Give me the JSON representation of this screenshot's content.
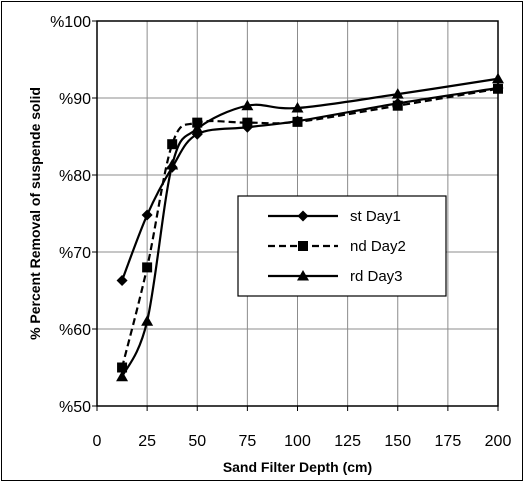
{
  "chart_data": {
    "type": "line",
    "xlabel": "Sand Filter Depth (cm)",
    "ylabel": "% Percent Removal of suspende solid",
    "xlim": [
      0,
      200
    ],
    "ylim": [
      50,
      100
    ],
    "x_ticks": [
      "0",
      "25",
      "50",
      "75",
      "100",
      "125",
      "150",
      "175",
      "200"
    ],
    "y_ticks": [
      "%50",
      "%60",
      "%70",
      "%80",
      "%90",
      "%100"
    ],
    "grid": true,
    "legend_position": "center-right",
    "series": [
      {
        "name": "st Day1",
        "marker": "diamond",
        "dash": "solid",
        "x": [
          12.5,
          25,
          37.5,
          50,
          75,
          100,
          150,
          200
        ],
        "values": [
          66.3,
          74.8,
          81.0,
          85.3,
          86.2,
          87.0,
          89.3,
          91.3
        ]
      },
      {
        "name": "nd Day2",
        "marker": "square",
        "dash": "dashed",
        "x": [
          12.5,
          25,
          37.5,
          50,
          75,
          100,
          150,
          200
        ],
        "values": [
          55.0,
          68.0,
          84.0,
          86.8,
          86.8,
          86.9,
          89.0,
          91.2
        ]
      },
      {
        "name": "rd Day3",
        "marker": "triangle",
        "dash": "solid",
        "x": [
          12.5,
          25,
          37.5,
          50,
          75,
          100,
          150,
          200
        ],
        "values": [
          53.8,
          61.0,
          81.3,
          86.0,
          89.0,
          88.7,
          90.5,
          92.5
        ]
      }
    ]
  }
}
